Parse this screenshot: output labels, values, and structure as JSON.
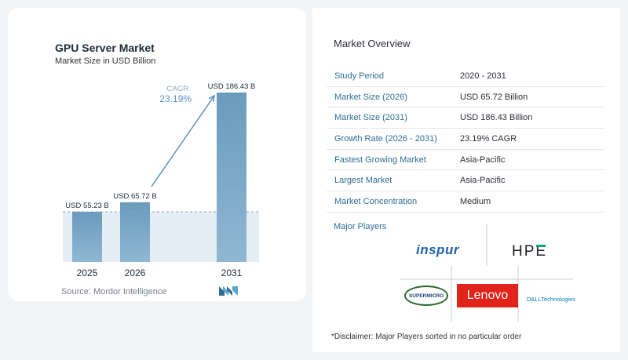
{
  "chart_data": {
    "type": "bar",
    "title": "GPU Server Market",
    "subtitle": "Market Size in USD Billion",
    "categories": [
      "2025",
      "2026",
      "2031"
    ],
    "values": [
      55.23,
      65.72,
      186.43
    ],
    "value_labels": [
      "USD 55.23 B",
      "USD 65.72 B",
      "USD 186.43 B"
    ],
    "cagr_label": "CAGR",
    "cagr_value": "23.19%",
    "ylim": [
      0,
      186.43
    ],
    "colors": {
      "bar_top": "#6a9bbd",
      "bar_bottom": "#8fb7d3",
      "arrow": "#5b94bd",
      "band": "#e6eef5"
    }
  },
  "source": "Source: Mordor Intelligence",
  "overview": {
    "title": "Market Overview",
    "rows": [
      {
        "label": "Study Period",
        "value": "2020 - 2031"
      },
      {
        "label": "Market Size (2026)",
        "value": "USD 65.72 Billion"
      },
      {
        "label": "Market Size (2031)",
        "value": "USD 186.43 Billion"
      },
      {
        "label": "Growth Rate (2026 - 2031)",
        "value": "23.19% CAGR"
      },
      {
        "label": "Fastest Growing Market",
        "value": "Asia-Pacific"
      },
      {
        "label": "Largest Market",
        "value": "Asia-Pacific"
      },
      {
        "label": "Market Concentration",
        "value": "Medium"
      }
    ]
  },
  "players": {
    "title": "Major Players",
    "logos": [
      "inspur",
      "HPE",
      "SUPERMICRO",
      "Lenovo",
      "D&LLTechnologies"
    ],
    "disclaimer": "*Disclaimer: Major Players sorted in no particular order"
  }
}
